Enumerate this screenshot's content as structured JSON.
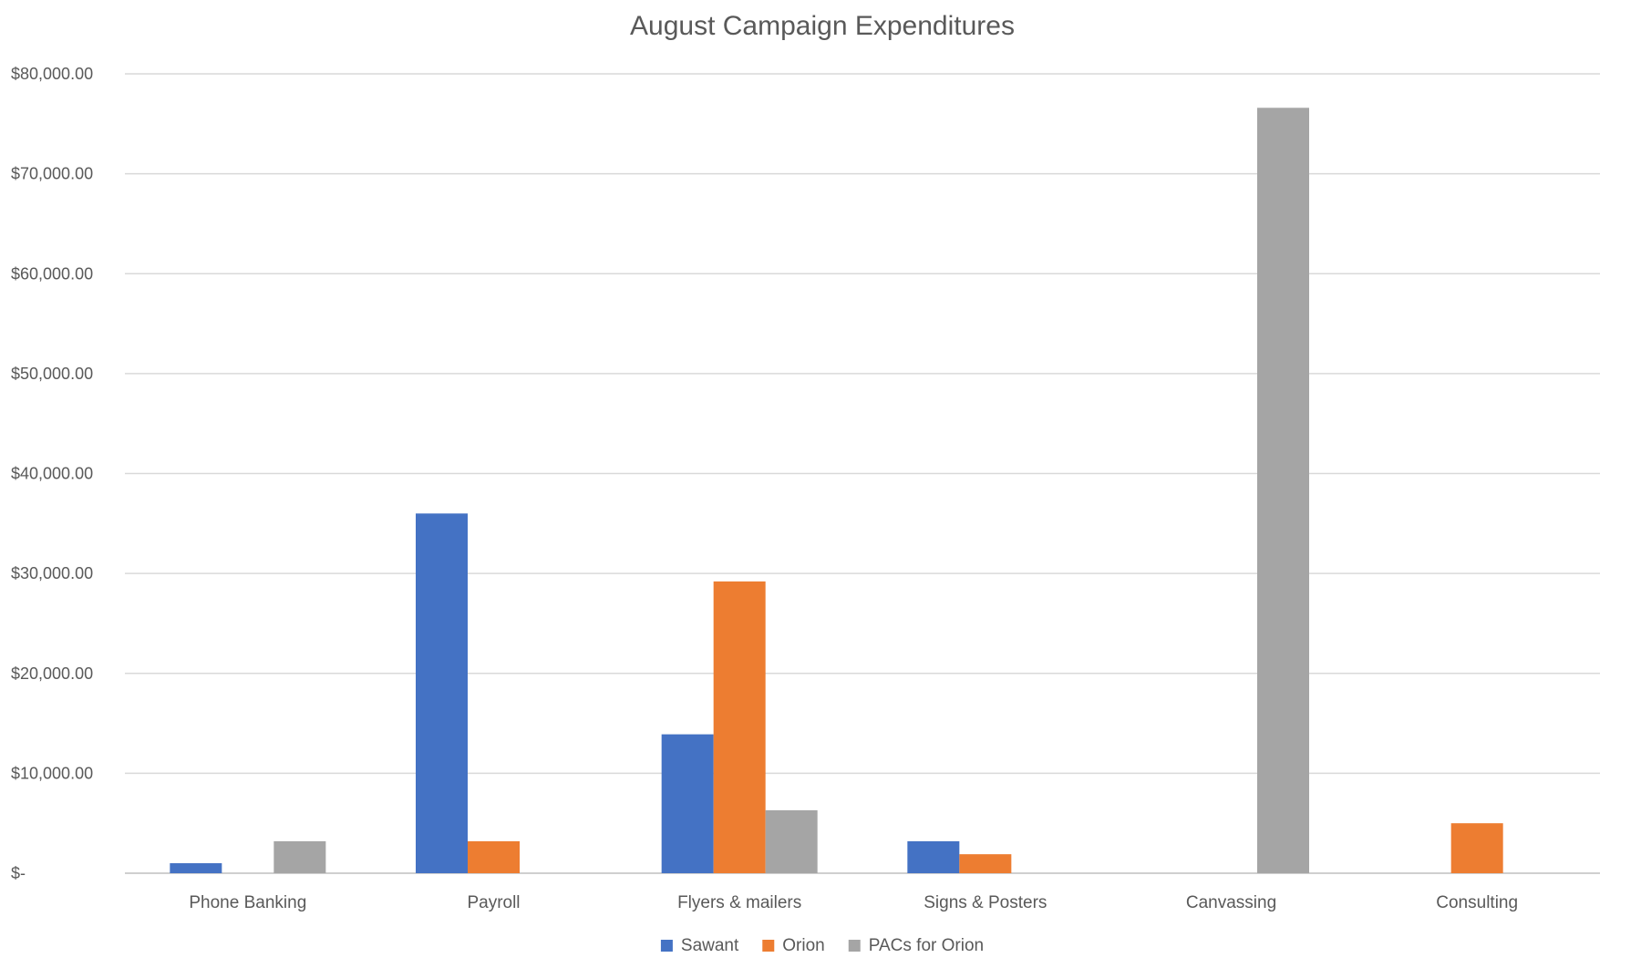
{
  "chart_data": {
    "type": "bar",
    "title": "August Campaign Expenditures",
    "xlabel": "",
    "ylabel": "",
    "categories": [
      "Phone Banking",
      "Payroll",
      "Flyers & mailers",
      "Signs & Posters",
      "Canvassing",
      "Consulting"
    ],
    "series": [
      {
        "name": "Sawant",
        "color": "#4472C4",
        "values": [
          1000,
          36000,
          13900,
          3200,
          0,
          0
        ]
      },
      {
        "name": "Orion",
        "color": "#ED7D31",
        "values": [
          0,
          3200,
          29200,
          1900,
          0,
          5000
        ]
      },
      {
        "name": "PACs for Orion",
        "color": "#A5A5A5",
        "values": [
          3200,
          0,
          6300,
          0,
          76600,
          0
        ]
      }
    ],
    "ylim": [
      0,
      80000
    ],
    "ytick_labels": [
      "$-",
      "$10,000.00",
      "$20,000.00",
      "$30,000.00",
      "$40,000.00",
      "$50,000.00",
      "$60,000.00",
      "$70,000.00",
      "$80,000.00"
    ],
    "grid": true,
    "legend_position": "bottom"
  }
}
